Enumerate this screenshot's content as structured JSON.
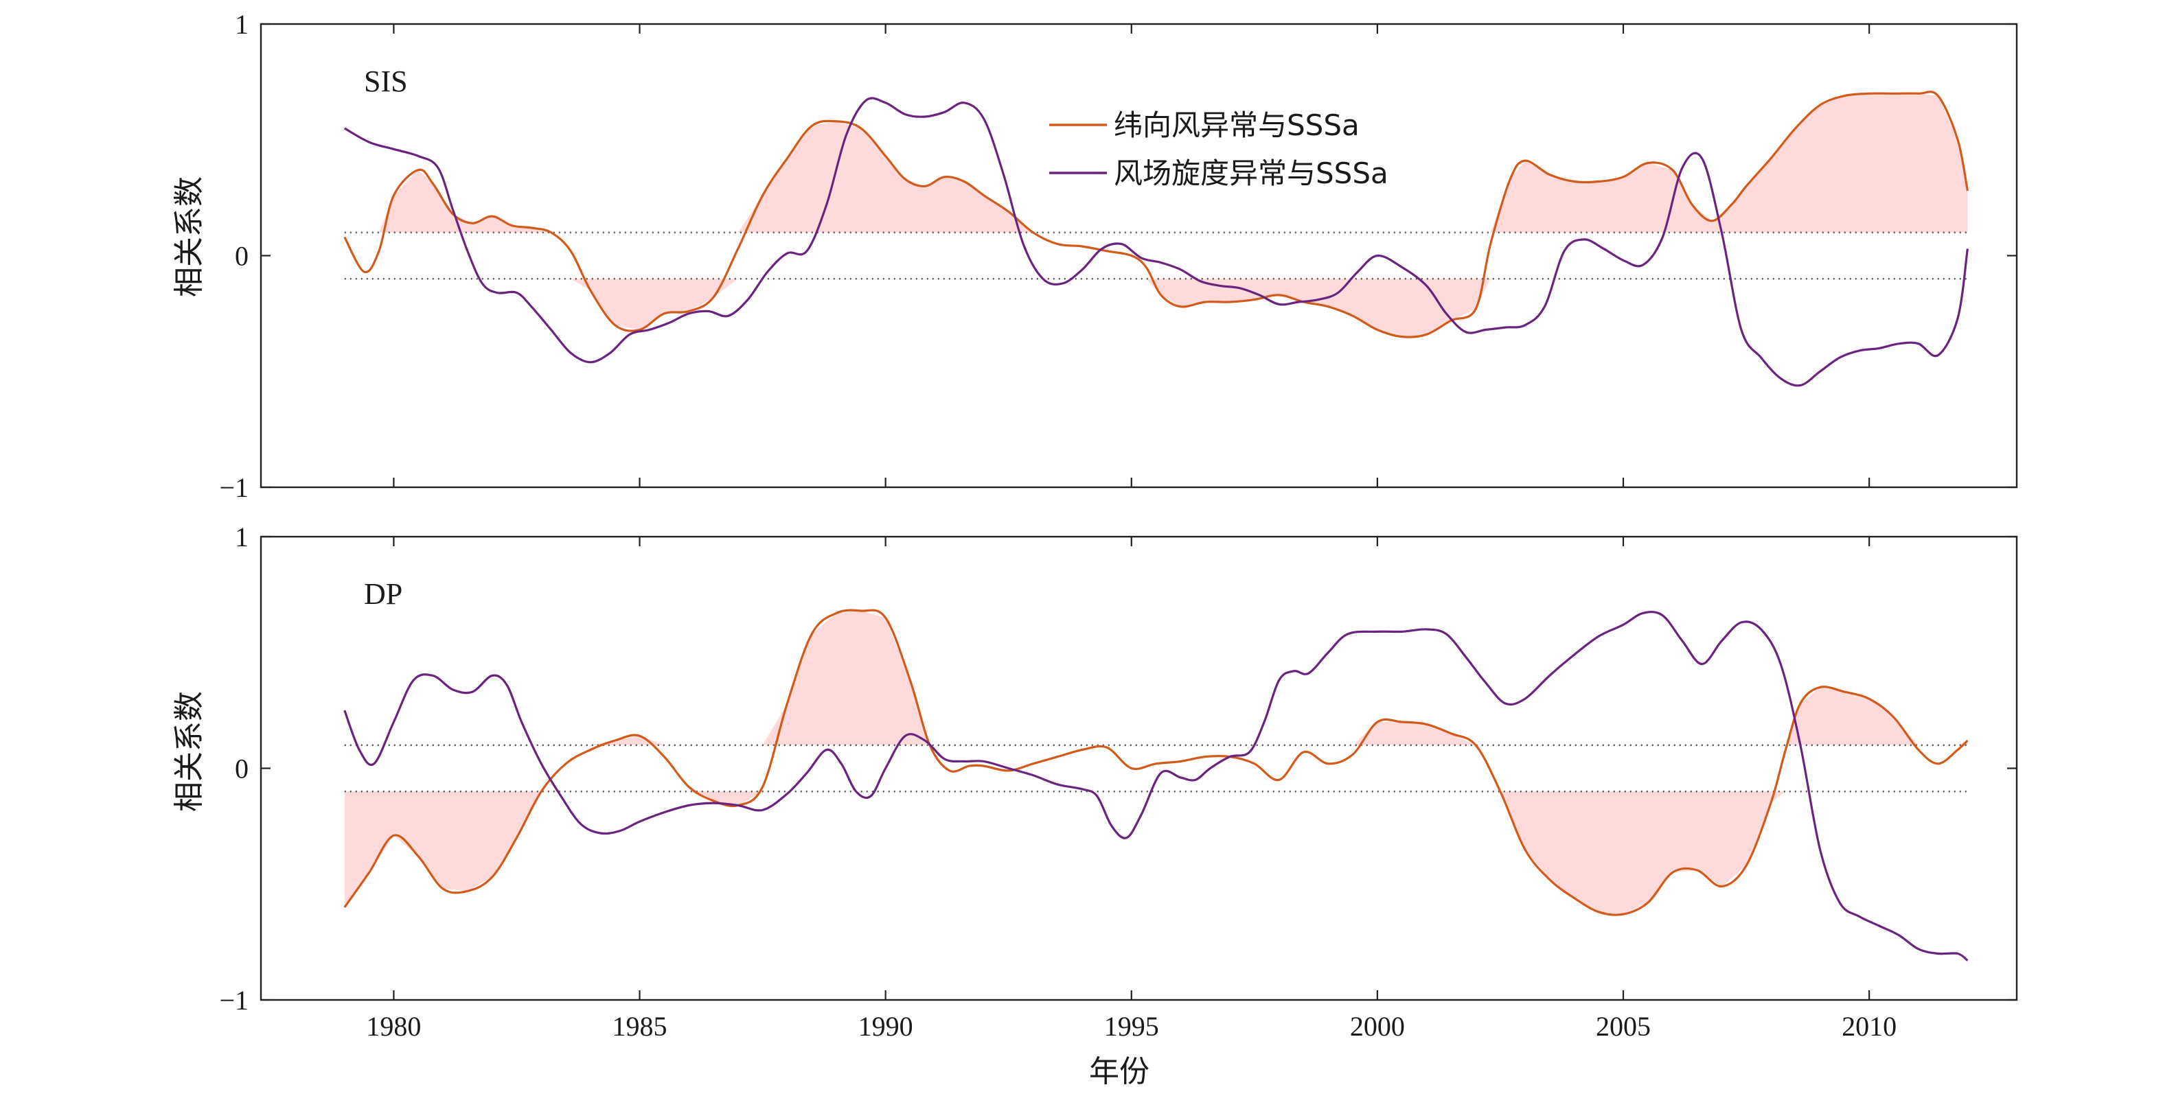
{
  "figure": {
    "xlabel": "年份",
    "ylabel": "相关系数",
    "colors": {
      "zonal": "#d45a1a",
      "curl": "#6b2380",
      "fill": "#ffdada",
      "axis": "#222222"
    }
  },
  "chart_data": [
    {
      "type": "line",
      "panel_label": "SIS",
      "legend_placement": "top-center",
      "xlim": [
        1977.3,
        2013.0
      ],
      "ylim": [
        -1,
        1
      ],
      "xticks": [
        "1980",
        "1985",
        "1990",
        "1995",
        "2000",
        "2005",
        "2010"
      ],
      "yticks": [
        "1",
        "0",
        "−1"
      ],
      "threshold": 0.1,
      "series": [
        {
          "name": "纬向风异常与SSSa",
          "color": "#d45a1a",
          "x": [
            1979.0,
            1979.4,
            1979.7,
            1980.0,
            1980.5,
            1980.8,
            1981.2,
            1981.6,
            1982.0,
            1982.4,
            1982.8,
            1983.2,
            1983.6,
            1984.0,
            1984.5,
            1985.0,
            1985.5,
            1986.0,
            1986.5,
            1987.0,
            1987.5,
            1988.0,
            1988.5,
            1989.0,
            1989.5,
            1990.0,
            1990.4,
            1990.8,
            1991.2,
            1991.6,
            1992.0,
            1992.5,
            1993.0,
            1993.5,
            1994.0,
            1994.5,
            1995.0,
            1995.3,
            1995.6,
            1996.0,
            1996.5,
            1997.0,
            1997.5,
            1998.0,
            1998.5,
            1999.0,
            1999.5,
            2000.0,
            2000.5,
            2001.0,
            2001.5,
            2002.0,
            2002.3,
            2002.7,
            2003.0,
            2003.5,
            2004.0,
            2004.5,
            2005.0,
            2005.5,
            2006.0,
            2006.4,
            2006.8,
            2007.2,
            2007.5,
            2008.0,
            2008.5,
            2009.0,
            2009.5,
            2010.0,
            2010.5,
            2011.0,
            2011.4,
            2011.8,
            2012.0
          ],
          "y": [
            0.08,
            -0.07,
            0.02,
            0.26,
            0.37,
            0.31,
            0.18,
            0.14,
            0.17,
            0.13,
            0.12,
            0.1,
            0.02,
            -0.15,
            -0.3,
            -0.32,
            -0.25,
            -0.24,
            -0.18,
            0.03,
            0.26,
            0.42,
            0.56,
            0.58,
            0.55,
            0.43,
            0.33,
            0.3,
            0.34,
            0.32,
            0.26,
            0.19,
            0.1,
            0.05,
            0.04,
            0.02,
            0.0,
            -0.05,
            -0.17,
            -0.22,
            -0.2,
            -0.2,
            -0.19,
            -0.17,
            -0.2,
            -0.22,
            -0.26,
            -0.32,
            -0.35,
            -0.34,
            -0.28,
            -0.23,
            0.05,
            0.33,
            0.41,
            0.35,
            0.32,
            0.32,
            0.34,
            0.4,
            0.37,
            0.22,
            0.15,
            0.22,
            0.3,
            0.42,
            0.55,
            0.65,
            0.69,
            0.7,
            0.7,
            0.7,
            0.69,
            0.5,
            0.28
          ]
        },
        {
          "name": "风场旋度异常与SSSa",
          "color": "#6b2380",
          "x": [
            1979.0,
            1979.5,
            1980.0,
            1980.5,
            1980.9,
            1981.2,
            1981.5,
            1981.8,
            1982.1,
            1982.5,
            1982.8,
            1983.2,
            1983.6,
            1984.0,
            1984.4,
            1984.8,
            1985.2,
            1985.6,
            1986.0,
            1986.4,
            1986.8,
            1987.2,
            1987.6,
            1988.0,
            1988.4,
            1988.8,
            1989.2,
            1989.6,
            1990.0,
            1990.4,
            1990.8,
            1991.2,
            1991.6,
            1992.0,
            1992.4,
            1992.8,
            1993.2,
            1993.6,
            1994.0,
            1994.4,
            1994.8,
            1995.2,
            1995.6,
            1996.0,
            1996.4,
            1996.8,
            1997.2,
            1997.6,
            1998.0,
            1998.4,
            1998.8,
            1999.2,
            1999.6,
            2000.0,
            2000.5,
            2001.0,
            2001.4,
            2001.8,
            2002.2,
            2002.6,
            2003.0,
            2003.4,
            2003.8,
            2004.2,
            2004.6,
            2005.0,
            2005.4,
            2005.8,
            2006.2,
            2006.6,
            2007.0,
            2007.4,
            2007.8,
            2008.2,
            2008.6,
            2009.0,
            2009.4,
            2009.8,
            2010.2,
            2010.6,
            2011.0,
            2011.4,
            2011.8,
            2012.0
          ],
          "y": [
            0.55,
            0.49,
            0.46,
            0.43,
            0.38,
            0.2,
            0.02,
            -0.12,
            -0.16,
            -0.16,
            -0.22,
            -0.32,
            -0.42,
            -0.46,
            -0.42,
            -0.34,
            -0.32,
            -0.29,
            -0.25,
            -0.24,
            -0.26,
            -0.19,
            -0.07,
            0.01,
            0.02,
            0.22,
            0.52,
            0.67,
            0.66,
            0.61,
            0.6,
            0.62,
            0.66,
            0.59,
            0.35,
            0.05,
            -0.1,
            -0.12,
            -0.06,
            0.03,
            0.05,
            -0.01,
            -0.03,
            -0.06,
            -0.11,
            -0.13,
            -0.14,
            -0.17,
            -0.21,
            -0.2,
            -0.19,
            -0.16,
            -0.07,
            0.0,
            -0.05,
            -0.13,
            -0.25,
            -0.33,
            -0.32,
            -0.31,
            -0.3,
            -0.22,
            0.02,
            0.07,
            0.03,
            -0.02,
            -0.04,
            0.08,
            0.38,
            0.42,
            0.1,
            -0.32,
            -0.44,
            -0.53,
            -0.56,
            -0.5,
            -0.44,
            -0.41,
            -0.4,
            -0.38,
            -0.38,
            -0.43,
            -0.27,
            0.03
          ]
        }
      ]
    },
    {
      "type": "line",
      "panel_label": "DP",
      "xlim": [
        1977.3,
        2013.0
      ],
      "ylim": [
        -1,
        1
      ],
      "xticks": [
        "1980",
        "1985",
        "1990",
        "1995",
        "2000",
        "2005",
        "2010"
      ],
      "yticks": [
        "1",
        "0",
        "−1"
      ],
      "threshold": 0.1,
      "series": [
        {
          "name": "纬向风异常与SSSa",
          "color": "#d45a1a",
          "x": [
            1979.0,
            1979.5,
            1980.0,
            1980.5,
            1981.0,
            1981.5,
            1982.0,
            1982.5,
            1983.0,
            1983.5,
            1984.0,
            1984.5,
            1985.0,
            1985.5,
            1986.0,
            1986.5,
            1987.0,
            1987.5,
            1988.0,
            1988.5,
            1989.0,
            1989.5,
            1990.0,
            1990.5,
            1990.9,
            1991.3,
            1991.7,
            1992.0,
            1992.5,
            1993.0,
            1993.5,
            1994.0,
            1994.5,
            1995.0,
            1995.5,
            1996.0,
            1996.5,
            1997.0,
            1997.5,
            1998.0,
            1998.5,
            1999.0,
            1999.5,
            2000.0,
            2000.5,
            2001.0,
            2001.5,
            2002.0,
            2002.5,
            2003.0,
            2003.5,
            2004.0,
            2004.5,
            2005.0,
            2005.5,
            2006.0,
            2006.5,
            2007.0,
            2007.5,
            2008.0,
            2008.3,
            2008.6,
            2009.0,
            2009.5,
            2010.0,
            2010.5,
            2011.0,
            2011.4,
            2011.8,
            2012.0
          ],
          "y": [
            -0.6,
            -0.45,
            -0.29,
            -0.38,
            -0.52,
            -0.53,
            -0.47,
            -0.3,
            -0.1,
            0.02,
            0.08,
            0.12,
            0.14,
            0.05,
            -0.08,
            -0.14,
            -0.16,
            -0.08,
            0.28,
            0.58,
            0.67,
            0.68,
            0.65,
            0.38,
            0.1,
            -0.01,
            0.01,
            0.01,
            -0.01,
            0.02,
            0.05,
            0.08,
            0.09,
            0.0,
            0.02,
            0.03,
            0.05,
            0.05,
            0.02,
            -0.05,
            0.07,
            0.02,
            0.06,
            0.2,
            0.2,
            0.19,
            0.15,
            0.1,
            -0.1,
            -0.35,
            -0.48,
            -0.56,
            -0.62,
            -0.63,
            -0.58,
            -0.45,
            -0.44,
            -0.51,
            -0.42,
            -0.15,
            0.08,
            0.28,
            0.35,
            0.33,
            0.3,
            0.22,
            0.08,
            0.02,
            0.08,
            0.12
          ]
        },
        {
          "name": "风场旋度异常与SSSa",
          "color": "#6b2380",
          "x": [
            1979.0,
            1979.3,
            1979.6,
            1980.0,
            1980.4,
            1980.8,
            1981.2,
            1981.6,
            1982.0,
            1982.3,
            1982.6,
            1983.0,
            1983.4,
            1983.8,
            1984.2,
            1984.6,
            1985.0,
            1985.5,
            1986.0,
            1986.5,
            1987.0,
            1987.5,
            1988.0,
            1988.4,
            1988.8,
            1989.1,
            1989.4,
            1989.7,
            1990.0,
            1990.4,
            1990.8,
            1991.2,
            1991.6,
            1992.0,
            1992.5,
            1993.0,
            1993.5,
            1994.0,
            1994.3,
            1994.6,
            1994.9,
            1995.2,
            1995.6,
            1996.0,
            1996.3,
            1996.6,
            1997.0,
            1997.4,
            1997.7,
            1998.0,
            1998.3,
            1998.6,
            1999.0,
            1999.4,
            2000.0,
            2000.5,
            2001.0,
            2001.4,
            2001.8,
            2002.2,
            2002.6,
            2003.0,
            2003.5,
            2004.0,
            2004.5,
            2005.0,
            2005.4,
            2005.8,
            2006.2,
            2006.6,
            2007.0,
            2007.4,
            2007.8,
            2008.2,
            2008.6,
            2009.0,
            2009.4,
            2009.8,
            2010.2,
            2010.6,
            2011.0,
            2011.4,
            2011.8,
            2012.0
          ],
          "y": [
            0.25,
            0.08,
            0.02,
            0.2,
            0.38,
            0.4,
            0.34,
            0.33,
            0.4,
            0.36,
            0.2,
            0.02,
            -0.12,
            -0.24,
            -0.28,
            -0.27,
            -0.23,
            -0.19,
            -0.16,
            -0.15,
            -0.16,
            -0.18,
            -0.11,
            -0.02,
            0.08,
            0.02,
            -0.1,
            -0.12,
            0.0,
            0.14,
            0.12,
            0.04,
            0.03,
            0.03,
            0.0,
            -0.03,
            -0.07,
            -0.09,
            -0.12,
            -0.25,
            -0.3,
            -0.2,
            -0.02,
            -0.04,
            -0.05,
            0.0,
            0.05,
            0.07,
            0.2,
            0.38,
            0.42,
            0.41,
            0.5,
            0.58,
            0.59,
            0.59,
            0.6,
            0.58,
            0.48,
            0.37,
            0.28,
            0.3,
            0.4,
            0.49,
            0.57,
            0.62,
            0.67,
            0.66,
            0.55,
            0.45,
            0.55,
            0.63,
            0.6,
            0.45,
            0.1,
            -0.35,
            -0.58,
            -0.64,
            -0.68,
            -0.72,
            -0.78,
            -0.8,
            -0.8,
            -0.83
          ]
        }
      ]
    }
  ]
}
